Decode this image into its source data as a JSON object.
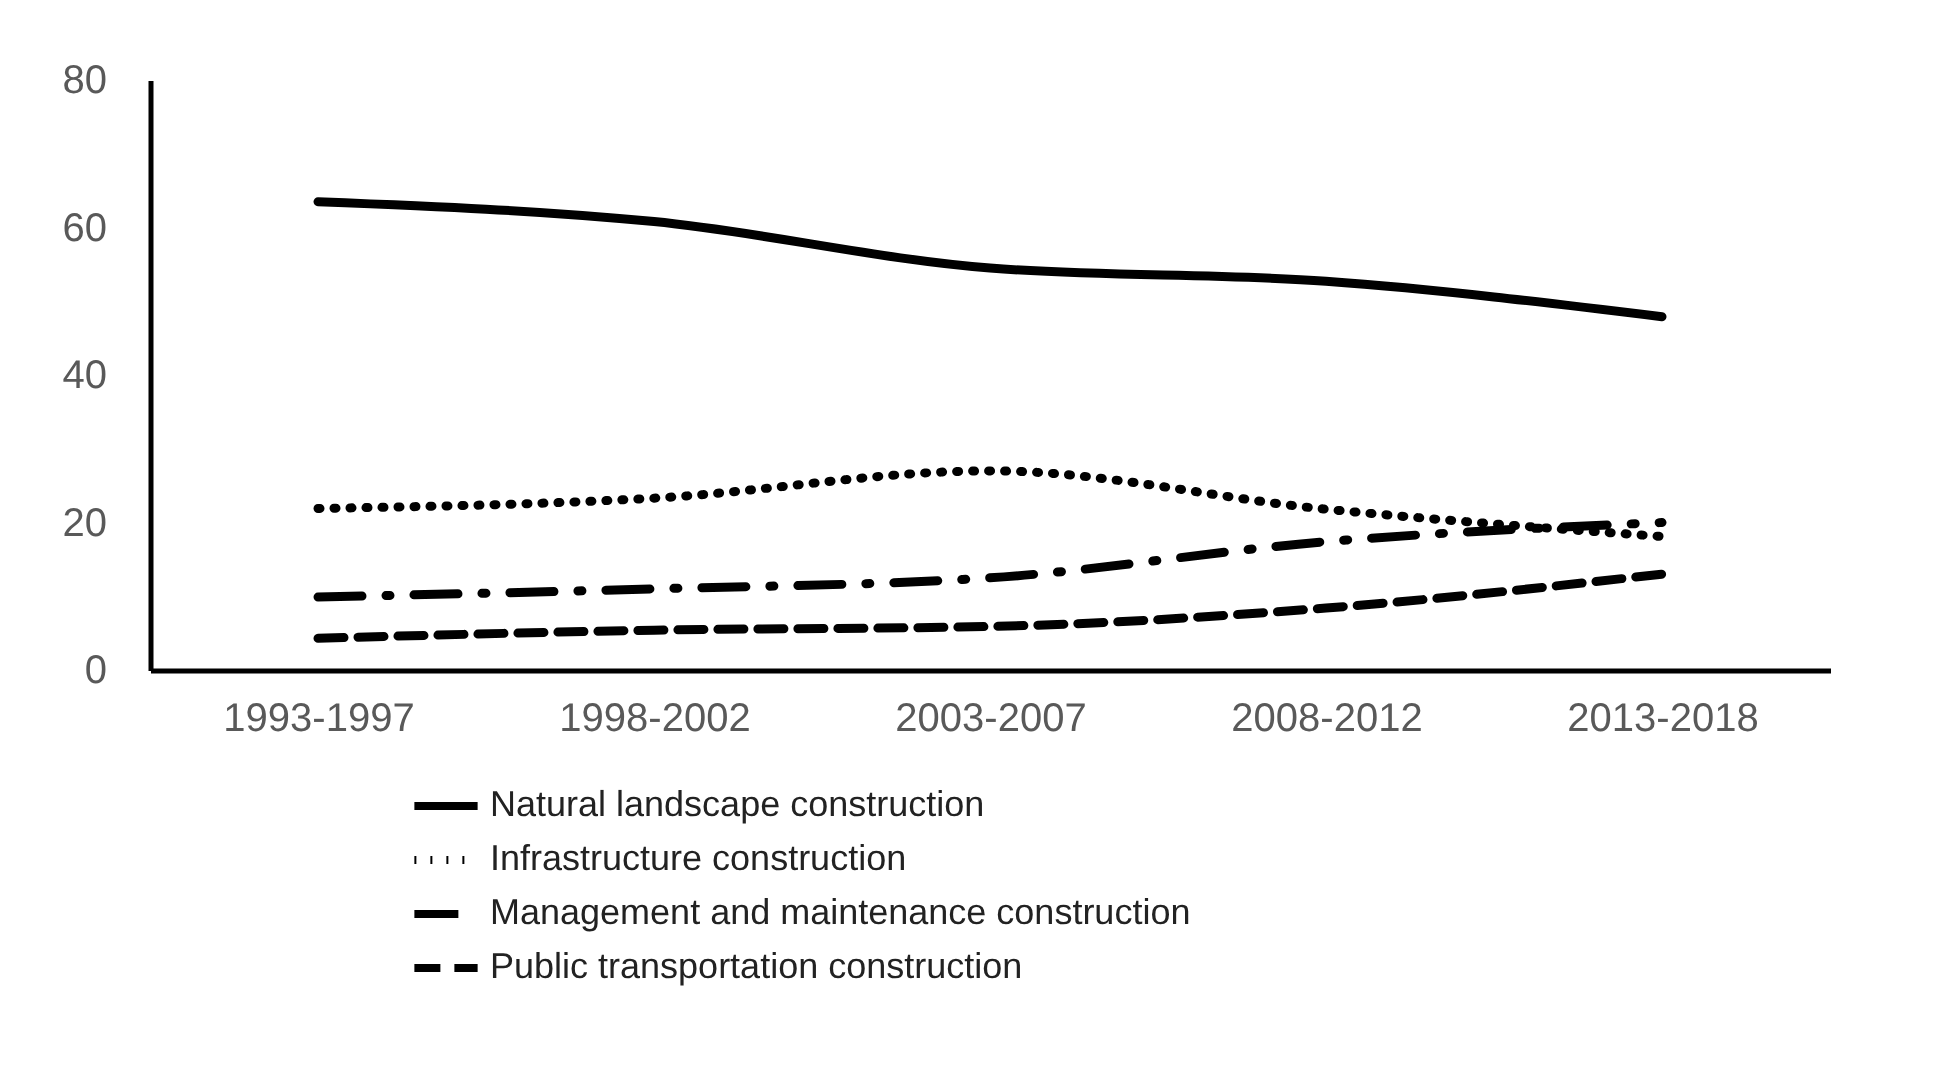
{
  "chart_data": {
    "type": "line",
    "categories": [
      "1993-1997",
      "1998-2002",
      "2003-2007",
      "2008-2012",
      "2013-2018"
    ],
    "series": [
      {
        "name": "Natural landscape construction",
        "color": "#000000",
        "line_style": "solid",
        "values": [
          63.5,
          60.8,
          54.5,
          52.7,
          47.9
        ]
      },
      {
        "name": "Infrastructure construction",
        "color": "#000000",
        "line_style": "dotted",
        "values": [
          21.9,
          23.3,
          27,
          21.8,
          18.1
        ]
      },
      {
        "name": "Management and maintenance construction",
        "color": "#000000",
        "line_style": "dashdot",
        "values": [
          9.9,
          11,
          12.5,
          17.4,
          20
        ]
      },
      {
        "name": "Public transportation construction",
        "color": "#000000",
        "line_style": "dashed",
        "values": [
          4.3,
          5.4,
          5.9,
          8.4,
          13
        ]
      }
    ],
    "ylim": [
      0,
      80
    ],
    "yticks": [
      0,
      20,
      40,
      60,
      80
    ],
    "grid": false,
    "legend": "bottom",
    "marker": "none"
  }
}
